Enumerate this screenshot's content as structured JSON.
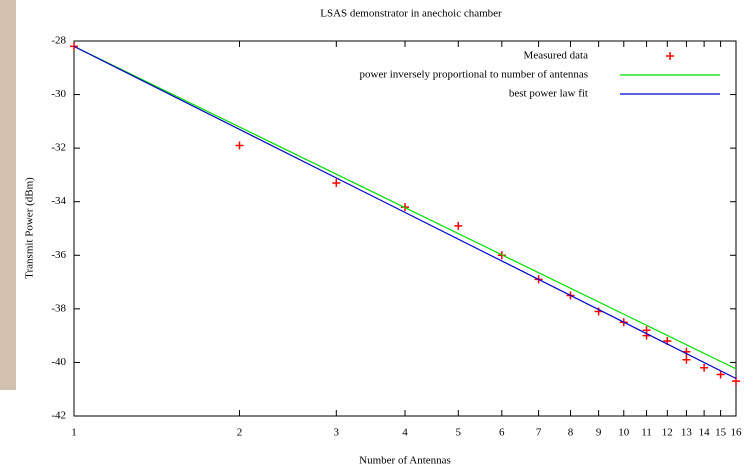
{
  "chart_data": {
    "type": "scatter",
    "title": "LSAS demonstrator in anechoic chamber",
    "x_label": "Number of Antennas",
    "y_label": "Transmit Power (dBm)",
    "xscale": "log",
    "xlim": [
      1,
      16
    ],
    "xticks": [
      1,
      2,
      3,
      4,
      5,
      6,
      7,
      8,
      9,
      10,
      11,
      12,
      13,
      14,
      15,
      16
    ],
    "ylim": [
      -42,
      -28
    ],
    "yticks": [
      -42,
      -40,
      -38,
      -36,
      -34,
      -32,
      -30,
      -28
    ],
    "legend": "top-right",
    "series": [
      {
        "name": "Measured data",
        "color": "#ff0000",
        "style": "points",
        "x": [
          1,
          2,
          3,
          4,
          5,
          6,
          7,
          8,
          9,
          10,
          11,
          11,
          12,
          13,
          13,
          14,
          15,
          16
        ],
        "values": [
          -28.2,
          -31.9,
          -33.3,
          -34.2,
          -34.9,
          -36.0,
          -36.9,
          -37.5,
          -38.1,
          -38.5,
          -38.8,
          -39.0,
          -39.2,
          -39.6,
          -39.9,
          -40.2,
          -40.45,
          -40.7
        ]
      },
      {
        "name": "power inversely proportional to number of antennas",
        "color": "#00dd00",
        "style": "line",
        "x": [
          1,
          16
        ],
        "values": [
          -28.2,
          -40.24
        ]
      },
      {
        "name": "best power law fit",
        "color": "#0000cc",
        "style": "line",
        "x": [
          1,
          16
        ],
        "values": [
          -28.2,
          -40.6
        ]
      }
    ]
  }
}
